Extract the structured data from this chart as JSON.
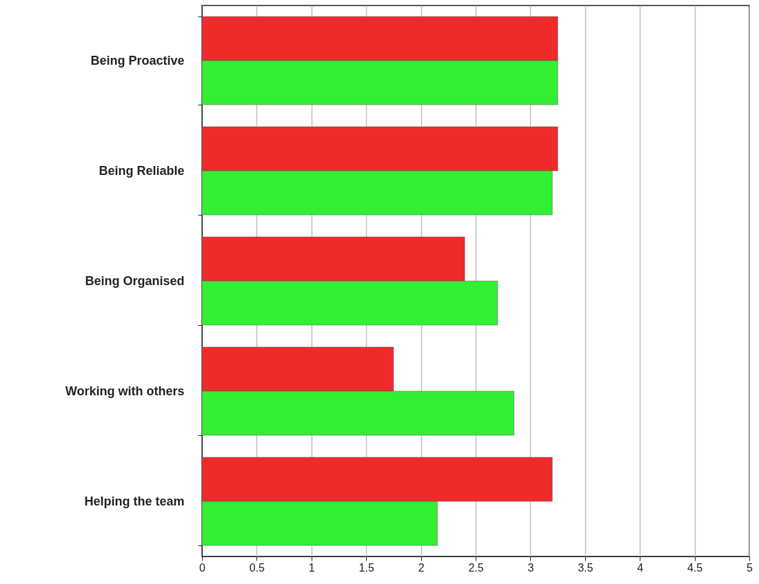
{
  "chart_data": {
    "type": "bar",
    "orientation": "horizontal",
    "categories": [
      "Being Proactive",
      "Being Reliable",
      "Being Organised",
      "Working with others",
      "Helping the team"
    ],
    "series": [
      {
        "color": "#ee2b2b",
        "values": [
          3.25,
          3.25,
          2.4,
          1.75,
          3.2
        ]
      },
      {
        "color": "#33ee33",
        "values": [
          3.25,
          3.2,
          2.7,
          2.85,
          2.15
        ]
      }
    ],
    "xlim": [
      0,
      5
    ],
    "xticks": [
      0,
      0.5,
      1,
      1.5,
      2,
      2.5,
      3,
      3.5,
      4,
      4.5,
      5
    ],
    "grid": "x"
  }
}
